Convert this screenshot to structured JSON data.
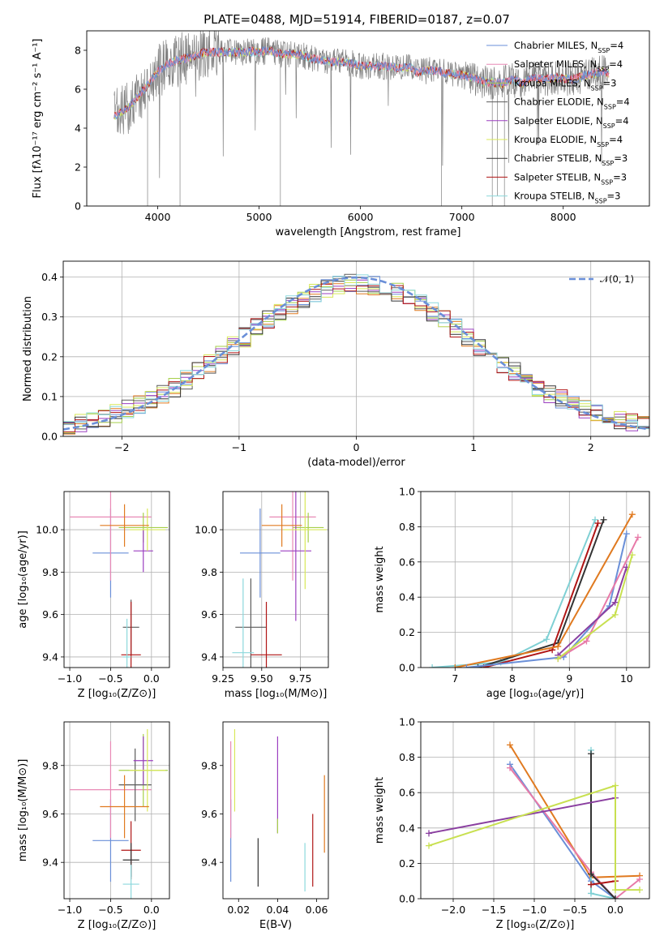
{
  "figure": {
    "title": "PLATE=0488, MJD=51914, FIBERID=0187, z=0.07",
    "colors": [
      "#6a8fd8",
      "#e889b5",
      "#a6cf4a",
      "#5b5b5b",
      "#9b3fc0",
      "#d8e85a",
      "#333333",
      "#b01515",
      "#8cd8dc"
    ],
    "extra_colors": {
      "orange": "#e07a20",
      "pink": "#e87aa8",
      "lime": "#c8e050",
      "purple": "#8a3fa0",
      "teal": "#7fd0d4"
    }
  },
  "legend": {
    "entries": [
      {
        "prefix": "Chabrier MILES, N",
        "sub": "SSP",
        "suffix": "=4"
      },
      {
        "prefix": "Salpeter MILES, N",
        "sub": "SSP",
        "suffix": "=4"
      },
      {
        "prefix": "Kroupa MILES, N",
        "sub": "SSP",
        "suffix": "=3"
      },
      {
        "prefix": "Chabrier ELODIE, N",
        "sub": "SSP",
        "suffix": "=4"
      },
      {
        "prefix": "Salpeter ELODIE, N",
        "sub": "SSP",
        "suffix": "=4"
      },
      {
        "prefix": "Kroupa ELODIE, N",
        "sub": "SSP",
        "suffix": "=4"
      },
      {
        "prefix": "Chabrier STELIB, N",
        "sub": "SSP",
        "suffix": "=3"
      },
      {
        "prefix": "Salpeter STELIB, N",
        "sub": "SSP",
        "suffix": "=3"
      },
      {
        "prefix": "Kroupa STELIB, N",
        "sub": "SSP",
        "suffix": "=3"
      }
    ]
  },
  "chart_data": [
    {
      "id": "spectrum",
      "type": "line",
      "xlabel": "wavelength [Angstrom, rest frame]",
      "ylabel": "Flux [fλ10⁻¹⁷ erg cm⁻² s⁻¹ A⁻¹]",
      "xlim": [
        3300,
        8850
      ],
      "ylim": [
        0,
        9
      ],
      "xticks": [
        4000,
        5000,
        6000,
        7000,
        8000
      ],
      "yticks": [
        0,
        2,
        4,
        6,
        8
      ],
      "grid": false,
      "legend_placement": "right",
      "continuum": [
        [
          3570,
          4.6
        ],
        [
          3700,
          5.0
        ],
        [
          3800,
          5.6
        ],
        [
          3900,
          6.2
        ],
        [
          4000,
          6.9
        ],
        [
          4100,
          7.3
        ],
        [
          4200,
          7.5
        ],
        [
          4300,
          7.6
        ],
        [
          4400,
          7.8
        ],
        [
          4500,
          7.9
        ],
        [
          4600,
          7.9
        ],
        [
          4700,
          7.9
        ],
        [
          4800,
          7.9
        ],
        [
          4900,
          7.95
        ],
        [
          5000,
          7.9
        ],
        [
          5100,
          8.0
        ],
        [
          5200,
          7.8
        ],
        [
          5300,
          7.8
        ],
        [
          5400,
          7.8
        ],
        [
          5500,
          7.6
        ],
        [
          5600,
          7.5
        ],
        [
          5700,
          7.4
        ],
        [
          5800,
          7.4
        ],
        [
          5900,
          7.35
        ],
        [
          6000,
          7.2
        ],
        [
          6100,
          7.2
        ],
        [
          6200,
          7.2
        ],
        [
          6300,
          7.15
        ],
        [
          6400,
          7.1
        ],
        [
          6500,
          7.1
        ],
        [
          6563,
          6.85
        ],
        [
          6700,
          7.0
        ],
        [
          6800,
          6.9
        ],
        [
          6900,
          6.8
        ],
        [
          7000,
          6.75
        ],
        [
          7100,
          6.6
        ],
        [
          7200,
          6.4
        ],
        [
          7300,
          6.35
        ],
        [
          7400,
          6.3
        ],
        [
          7500,
          6.5
        ],
        [
          7600,
          6.3
        ],
        [
          7700,
          6.6
        ],
        [
          7800,
          6.5
        ],
        [
          7900,
          6.6
        ],
        [
          8000,
          6.55
        ],
        [
          8100,
          6.5
        ],
        [
          8200,
          6.7
        ],
        [
          8300,
          6.8
        ],
        [
          8400,
          6.9
        ],
        [
          8450,
          6.8
        ]
      ]
    },
    {
      "id": "residuals",
      "type": "step",
      "xlabel": "(data-model)/error",
      "ylabel": "Normed distribution",
      "xlim": [
        -2.5,
        2.5
      ],
      "ylim": [
        0,
        0.44
      ],
      "xticks": [
        -2,
        -1,
        0,
        1,
        2
      ],
      "yticks": [
        0.0,
        0.1,
        0.2,
        0.3,
        0.4
      ],
      "grid": true,
      "legend_label": "𝒩(0, 1)",
      "legend_placement": "top-right",
      "bin_width": 0.1
    },
    {
      "id": "age-vs-z",
      "type": "errorbar",
      "xlabel": "Z [log₁₀(Z/Z⊙)]",
      "ylabel": "age  [log₁₀(age/yr)]",
      "xlim": [
        -1.07,
        0.22
      ],
      "ylim": [
        9.35,
        10.18
      ],
      "xticks": [
        -1.0,
        -0.5,
        0.0
      ],
      "yticks": [
        9.4,
        9.6,
        9.8,
        10.0
      ],
      "grid": true,
      "points": [
        {
          "x": -0.5,
          "xerr": 0.22,
          "y": 9.89,
          "yerr": 0.21,
          "c": 0
        },
        {
          "x": -0.5,
          "xerr": 0.5,
          "y": 10.06,
          "yerr": 0.3,
          "c": 1
        },
        {
          "x": -0.1,
          "xerr": 0.3,
          "y": 10.01,
          "yerr": 0.07,
          "c": 2
        },
        {
          "x": -0.25,
          "xerr": 0.1,
          "y": 9.54,
          "yerr": 0.13,
          "c": 3
        },
        {
          "x": -0.1,
          "xerr": 0.12,
          "y": 9.9,
          "yerr": 0.1,
          "c": 4
        },
        {
          "x": -0.05,
          "xerr": 0.22,
          "y": 10.0,
          "yerr": 0.1,
          "c": 5
        },
        {
          "x": -0.25,
          "xerr": 0.12,
          "y": 9.41,
          "yerr": 0.25,
          "c": 7
        },
        {
          "x": -0.3,
          "xerr": 0.05,
          "y": 9.4,
          "yerr": 0.18,
          "c": 8
        },
        {
          "x": -0.33,
          "xerr": 0.3,
          "y": 10.02,
          "yerr": 0.1,
          "c": "orange"
        }
      ]
    },
    {
      "id": "age-vs-mass",
      "type": "errorbar",
      "xlabel": "mass [log₁₀(M/M⊙)]",
      "ylabel": "",
      "xlim": [
        9.25,
        9.93
      ],
      "ylim": [
        9.35,
        10.18
      ],
      "xticks": [
        9.25,
        9.5,
        9.75
      ],
      "yticks": [
        9.4,
        9.6,
        9.8,
        10.0
      ],
      "grid": true,
      "points": [
        {
          "x": 9.49,
          "xerr": 0.13,
          "y": 9.89,
          "yerr": 0.21,
          "c": 0
        },
        {
          "x": 9.7,
          "xerr": 0.15,
          "y": 10.06,
          "yerr": 0.3,
          "c": 1
        },
        {
          "x": 9.8,
          "xerr": 0.1,
          "y": 10.01,
          "yerr": 0.07,
          "c": 2
        },
        {
          "x": 9.43,
          "xerr": 0.1,
          "y": 9.54,
          "yerr": 0.23,
          "c": 3
        },
        {
          "x": 9.72,
          "xerr": 0.1,
          "y": 9.9,
          "yerr": 0.33,
          "c": 4
        },
        {
          "x": 9.78,
          "xerr": 0.14,
          "y": 10.0,
          "yerr": 0.28,
          "c": 5
        },
        {
          "x": 9.53,
          "xerr": 0.1,
          "y": 9.41,
          "yerr": 0.25,
          "c": 7
        },
        {
          "x": 9.38,
          "xerr": 0.07,
          "y": 9.42,
          "yerr": 0.35,
          "c": 8
        },
        {
          "x": 9.63,
          "xerr": 0.13,
          "y": 10.02,
          "yerr": 0.1,
          "c": "orange"
        }
      ]
    },
    {
      "id": "massweight-vs-age",
      "type": "line",
      "xlabel": "age  [log₁₀(age/yr)]",
      "ylabel": "mass weight",
      "xlim": [
        6.4,
        10.4
      ],
      "ylim": [
        0,
        1.0
      ],
      "xticks": [
        7,
        8,
        9,
        10
      ],
      "yticks": [
        0.0,
        0.2,
        0.4,
        0.6,
        0.8,
        1.0
      ],
      "grid": true,
      "series": [
        {
          "c": "teal",
          "points": [
            [
              6.6,
              0.0
            ],
            [
              7.8,
              0.03
            ],
            [
              8.6,
              0.16
            ],
            [
              9.45,
              0.84
            ]
          ]
        },
        {
          "c": 6,
          "points": [
            [
              7.4,
              0.0
            ],
            [
              8.8,
              0.14
            ],
            [
              9.6,
              0.84
            ]
          ]
        },
        {
          "c": 7,
          "points": [
            [
              7.5,
              0.0
            ],
            [
              8.7,
              0.1
            ],
            [
              9.5,
              0.82
            ]
          ]
        },
        {
          "c": "orange",
          "points": [
            [
              7.0,
              0.0
            ],
            [
              8.8,
              0.12
            ],
            [
              10.1,
              0.87
            ]
          ]
        },
        {
          "c": 0,
          "points": [
            [
              7.2,
              0.0
            ],
            [
              8.9,
              0.06
            ],
            [
              9.7,
              0.35
            ],
            [
              10.0,
              0.76
            ]
          ]
        },
        {
          "c": "pink",
          "points": [
            [
              8.8,
              0.05
            ],
            [
              9.3,
              0.15
            ],
            [
              10.2,
              0.74
            ]
          ]
        },
        {
          "c": "purple",
          "points": [
            [
              8.8,
              0.07
            ],
            [
              9.8,
              0.37
            ],
            [
              10.0,
              0.57
            ]
          ]
        },
        {
          "c": "lime",
          "points": [
            [
              8.8,
              0.05
            ],
            [
              9.8,
              0.3
            ],
            [
              10.1,
              0.64
            ]
          ]
        }
      ]
    },
    {
      "id": "mass-vs-z",
      "type": "errorbar",
      "xlabel": "Z [log₁₀(Z/Z⊙)]",
      "ylabel": "mass [log₁₀(M/M⊙)]",
      "xlim": [
        -1.07,
        0.22
      ],
      "ylim": [
        9.25,
        9.98
      ],
      "xticks": [
        -1.0,
        -0.5,
        0.0
      ],
      "yticks": [
        9.4,
        9.6,
        9.8
      ],
      "grid": true,
      "points": [
        {
          "x": -0.5,
          "xerr": 0.22,
          "y": 9.49,
          "yerr": 0.17,
          "c": 0
        },
        {
          "x": -0.5,
          "xerr": 0.5,
          "y": 9.7,
          "yerr": 0.2,
          "c": 1
        },
        {
          "x": -0.1,
          "xerr": 0.3,
          "y": 9.78,
          "yerr": 0.15,
          "c": 2
        },
        {
          "x": -0.2,
          "xerr": 0.2,
          "y": 9.72,
          "yerr": 0.15,
          "c": 3
        },
        {
          "x": -0.1,
          "xerr": 0.12,
          "y": 9.82,
          "yerr": 0.1,
          "c": 4
        },
        {
          "x": -0.05,
          "xerr": 0.22,
          "y": 9.78,
          "yerr": 0.17,
          "c": 5
        },
        {
          "x": -0.25,
          "xerr": 0.12,
          "y": 9.45,
          "yerr": 0.12,
          "c": 7
        },
        {
          "x": -0.25,
          "xerr": 0.1,
          "y": 9.41,
          "yerr": 0.07,
          "c": 6
        },
        {
          "x": -0.25,
          "xerr": 0.1,
          "y": 9.31,
          "yerr": 0.08,
          "c": 8
        },
        {
          "x": -0.33,
          "xerr": 0.3,
          "y": 9.63,
          "yerr": 0.13,
          "c": "orange"
        }
      ]
    },
    {
      "id": "mass-vs-ebv",
      "type": "errorbar",
      "xlabel": "E(B-V)",
      "ylabel": "",
      "xlim": [
        0.012,
        0.066
      ],
      "ylim": [
        9.25,
        9.98
      ],
      "xticks": [
        0.02,
        0.04,
        0.06
      ],
      "yticks": [
        9.4,
        9.6,
        9.8
      ],
      "grid": false,
      "points": [
        {
          "x": 0.016,
          "y": 9.49,
          "yerr": 0.17,
          "c": 0
        },
        {
          "x": 0.016,
          "y": 9.7,
          "yerr": 0.2,
          "c": 1
        },
        {
          "x": 0.018,
          "y": 9.78,
          "yerr": 0.17,
          "c": 5
        },
        {
          "x": 0.03,
          "y": 9.4,
          "yerr": 0.1,
          "c": 6
        },
        {
          "x": 0.04,
          "y": 9.72,
          "yerr": 0.2,
          "c": 4
        },
        {
          "x": 0.04,
          "y": 9.55,
          "yerr": 0.03,
          "c": 2
        },
        {
          "x": 0.054,
          "y": 9.38,
          "yerr": 0.1,
          "c": 8
        },
        {
          "x": 0.058,
          "y": 9.45,
          "yerr": 0.15,
          "c": 7
        },
        {
          "x": 0.064,
          "y": 9.6,
          "yerr": 0.16,
          "c": "orange"
        }
      ]
    },
    {
      "id": "massweight-vs-z",
      "type": "line",
      "xlabel": "Z [log₁₀(Z/Z⊙)]",
      "ylabel": "mass weight",
      "xlim": [
        -2.4,
        0.42
      ],
      "ylim": [
        0,
        1.0
      ],
      "xticks": [
        -2.0,
        -1.5,
        -1.0,
        -0.5,
        0.0
      ],
      "yticks": [
        0.0,
        0.2,
        0.4,
        0.6,
        0.8,
        1.0
      ],
      "grid": true,
      "series": [
        {
          "c": "orange",
          "points": [
            [
              -1.3,
              0.87
            ],
            [
              -0.3,
              0.12
            ],
            [
              0.3,
              0.13
            ]
          ]
        },
        {
          "c": 0,
          "points": [
            [
              -1.3,
              0.76
            ],
            [
              -0.3,
              0.1
            ],
            [
              0.0,
              0.0
            ]
          ]
        },
        {
          "c": "pink",
          "points": [
            [
              -1.3,
              0.74
            ],
            [
              -0.3,
              0.15
            ],
            [
              0.0,
              0.0
            ],
            [
              0.3,
              0.11
            ]
          ]
        },
        {
          "c": "teal",
          "points": [
            [
              -0.3,
              0.84
            ],
            [
              -0.3,
              0.03
            ],
            [
              0.0,
              0.0
            ]
          ]
        },
        {
          "c": 6,
          "points": [
            [
              -0.3,
              0.82
            ],
            [
              -0.3,
              0.14
            ],
            [
              0.0,
              0.0
            ]
          ]
        },
        {
          "c": 7,
          "points": [
            [
              -0.3,
              0.08
            ],
            [
              0.0,
              0.1
            ]
          ]
        },
        {
          "c": "purple",
          "points": [
            [
              -2.3,
              0.37
            ],
            [
              0.0,
              0.57
            ]
          ]
        },
        {
          "c": "lime",
          "points": [
            [
              -2.3,
              0.3
            ],
            [
              0.0,
              0.64
            ],
            [
              0.0,
              0.05
            ],
            [
              0.3,
              0.05
            ]
          ]
        }
      ]
    }
  ]
}
